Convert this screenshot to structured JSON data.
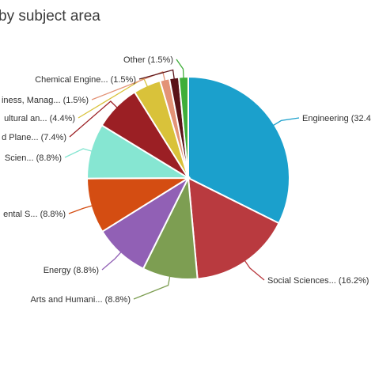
{
  "header": {
    "title": "by subject area"
  },
  "chart_data": {
    "type": "pie",
    "title": "by subject area",
    "start_angle_deg": 0,
    "direction": "clockwise",
    "slices": [
      {
        "label": "Engineering (32.4",
        "category": "Engineering",
        "value": 32.4,
        "color": "#1ba0cc"
      },
      {
        "label": "Social Sciences... (16.2%)",
        "category": "Social Sciences...",
        "value": 16.2,
        "color": "#b93a3f"
      },
      {
        "label": "Arts and Humani... (8.8%)",
        "category": "Arts and Humani...",
        "value": 8.8,
        "color": "#7d9e52"
      },
      {
        "label": "Energy (8.8%)",
        "category": "Energy",
        "value": 8.8,
        "color": "#9160b5"
      },
      {
        "label": "ental S... (8.8%)",
        "category": "ental S...",
        "value": 8.8,
        "color": "#d44d12"
      },
      {
        "label": "Scien... (8.8%)",
        "category": "Scien...",
        "value": 8.8,
        "color": "#86e6d2"
      },
      {
        "label": "d Plane... (7.4%)",
        "category": "d Plane...",
        "value": 7.4,
        "color": "#9b1f24"
      },
      {
        "label": "ultural an... (4.4%)",
        "category": "ultural an...",
        "value": 4.4,
        "color": "#d9c23a"
      },
      {
        "label": "iness, Manag... (1.5%)",
        "category": "iness, Manag...",
        "value": 1.5,
        "color": "#e39377"
      },
      {
        "label": "Chemical Engine... (1.5%)",
        "category": "Chemical Engine...",
        "value": 1.5,
        "color": "#5a1318"
      },
      {
        "label": "Other (1.5%)",
        "category": "Other",
        "value": 1.5,
        "color": "#3fae3a"
      }
    ]
  }
}
